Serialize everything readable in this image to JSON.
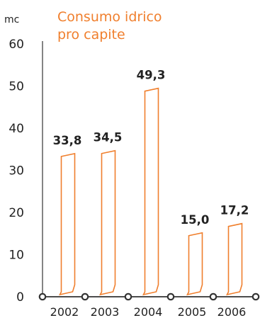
{
  "chart_data": {
    "type": "bar",
    "title_lines": [
      "Consumo idrico",
      "pro capite"
    ],
    "unit": "mc",
    "categories": [
      "2002",
      "2003",
      "2004",
      "2005",
      "2006"
    ],
    "values": [
      33.8,
      34.5,
      49.3,
      15.0,
      17.2
    ],
    "value_labels": [
      "33,8",
      "34,5",
      "49,3",
      "15,0",
      "17,2"
    ],
    "ylim": [
      0,
      60
    ],
    "yticks": [
      "0",
      "10",
      "20",
      "30",
      "40",
      "50",
      "60"
    ],
    "grid": false,
    "legend": "none"
  },
  "colors": {
    "accent": "#F07F2D",
    "axis": "#333333",
    "text": "#222222"
  }
}
